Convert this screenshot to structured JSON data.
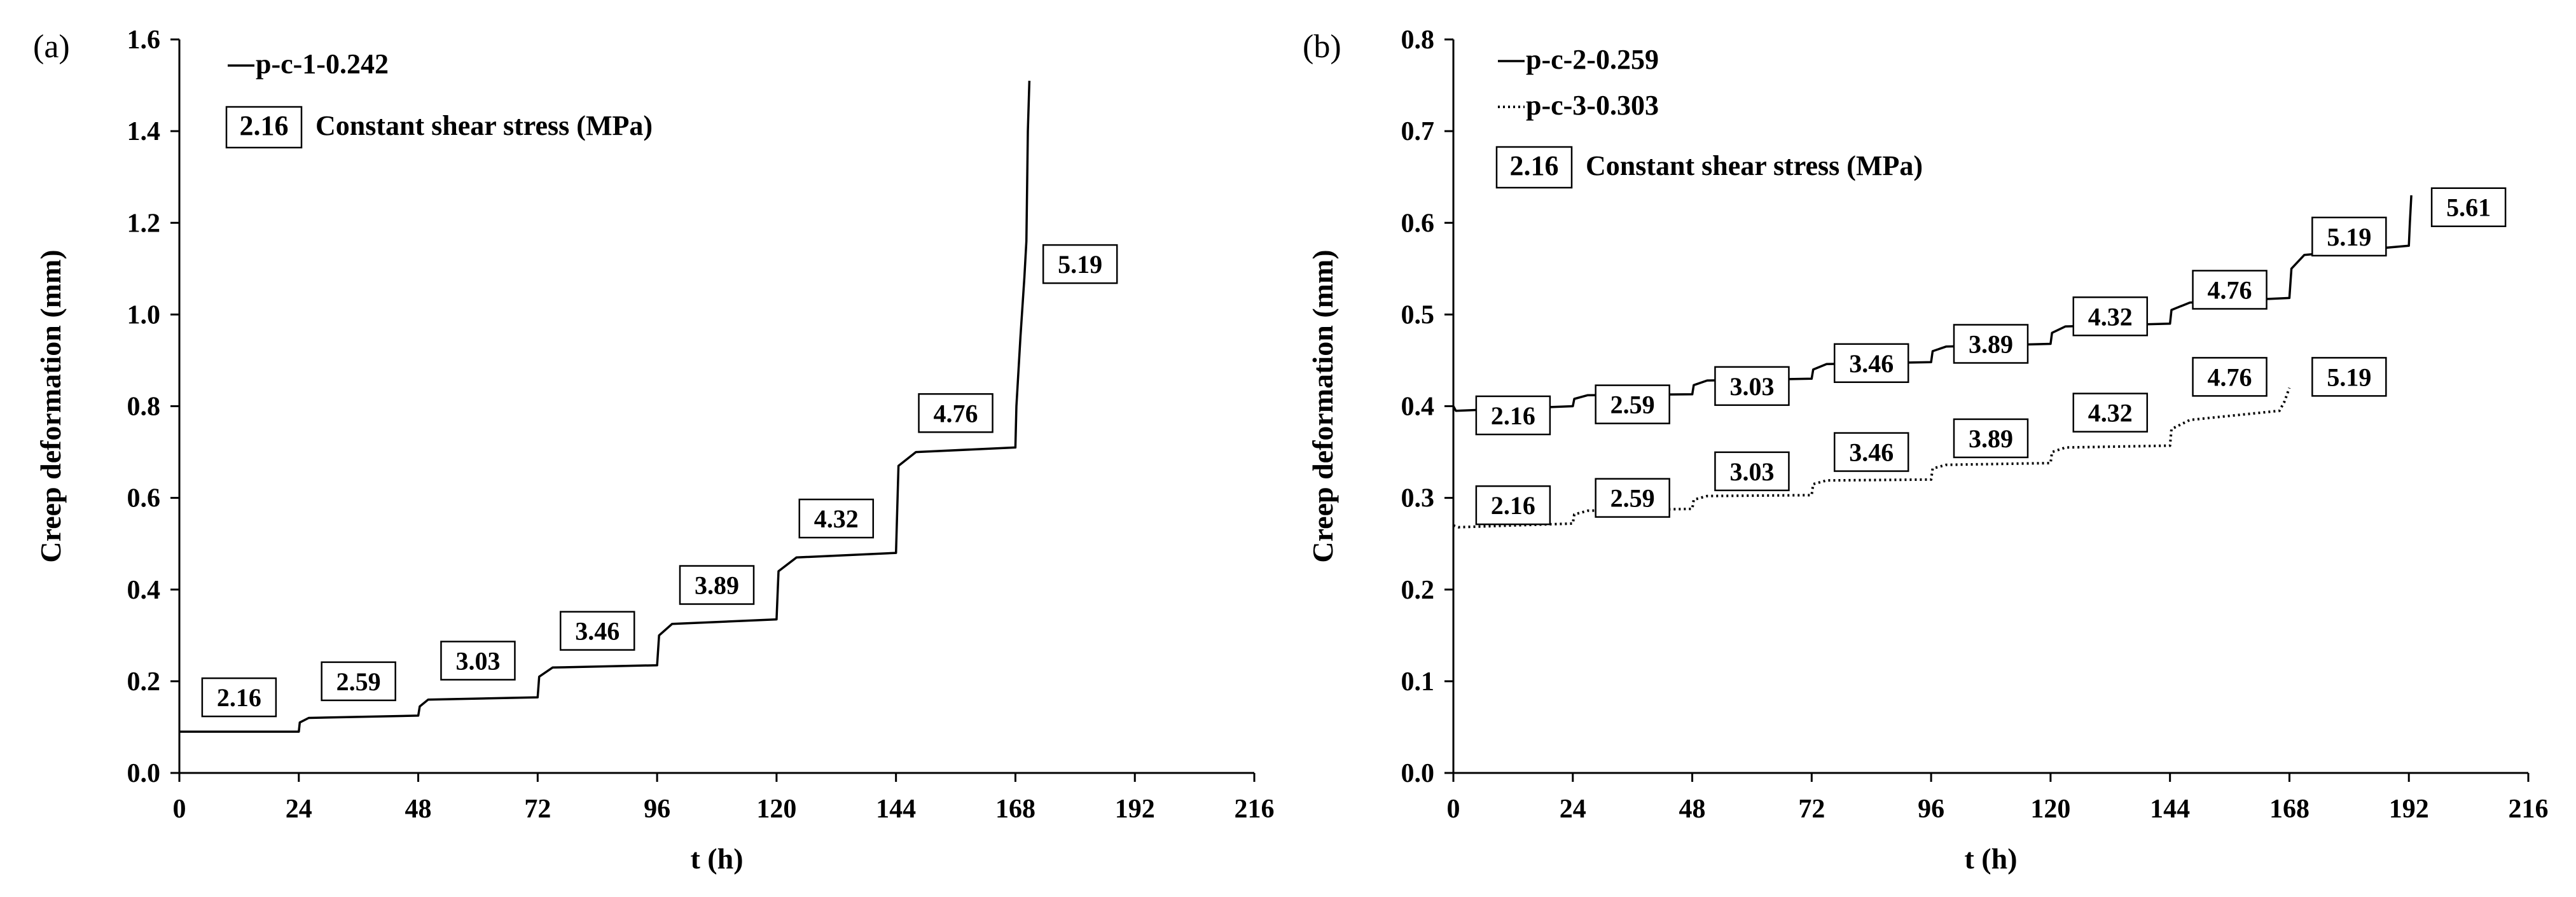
{
  "chart_data": [
    {
      "type": "line",
      "panel_label": "(a)",
      "xlabel": "t (h)",
      "ylabel": "Creep deformation (mm)",
      "xlim": [
        0,
        216
      ],
      "ylim": [
        0,
        1.6
      ],
      "x_ticks": [
        "0",
        "24",
        "48",
        "72",
        "96",
        "120",
        "144",
        "168",
        "192",
        "216"
      ],
      "y_ticks": [
        "0.0",
        "0.2",
        "0.4",
        "0.6",
        "0.8",
        "1.0",
        "1.2",
        "1.4",
        "1.6"
      ],
      "grid": false,
      "legend_position": "top-left",
      "box_legend": {
        "sample": "2.16",
        "text": "Constant shear stress (MPa)"
      },
      "series": [
        {
          "name": "p-c-1-0.242",
          "style": "solid",
          "x": [
            0,
            24,
            24.2,
            26,
            48,
            48.3,
            50,
            72,
            72.3,
            75,
            96,
            96.4,
            99,
            120,
            120.4,
            124,
            144,
            144.5,
            148,
            168,
            168.2,
            169,
            169.8,
            170.2,
            170.5,
            170.8
          ],
          "y": [
            0.09,
            0.09,
            0.11,
            0.12,
            0.125,
            0.145,
            0.16,
            0.165,
            0.21,
            0.23,
            0.235,
            0.3,
            0.325,
            0.335,
            0.44,
            0.47,
            0.48,
            0.67,
            0.7,
            0.71,
            0.8,
            0.95,
            1.08,
            1.16,
            1.4,
            1.51
          ]
        }
      ],
      "annotations": [
        {
          "text": "2.16",
          "x": 12,
          "y": 0.165
        },
        {
          "text": "2.59",
          "x": 36,
          "y": 0.2
        },
        {
          "text": "3.03",
          "x": 60,
          "y": 0.245
        },
        {
          "text": "3.46",
          "x": 84,
          "y": 0.31
        },
        {
          "text": "3.89",
          "x": 108,
          "y": 0.41
        },
        {
          "text": "4.32",
          "x": 132,
          "y": 0.555
        },
        {
          "text": "4.76",
          "x": 156,
          "y": 0.785
        },
        {
          "text": "5.19",
          "x": 181,
          "y": 1.11
        }
      ]
    },
    {
      "type": "line",
      "panel_label": "(b)",
      "xlabel": "t (h)",
      "ylabel": "Creep deformation (mm)",
      "xlim": [
        0,
        216
      ],
      "ylim": [
        0,
        0.8
      ],
      "x_ticks": [
        "0",
        "24",
        "48",
        "72",
        "96",
        "120",
        "144",
        "168",
        "192",
        "216"
      ],
      "y_ticks": [
        "0.0",
        "0.1",
        "0.2",
        "0.3",
        "0.4",
        "0.5",
        "0.6",
        "0.7",
        "0.8"
      ],
      "grid": false,
      "legend_position": "top-left",
      "box_legend": {
        "sample": "2.16",
        "text": "Constant shear stress (MPa)"
      },
      "series": [
        {
          "name": "p-c-2-0.259",
          "style": "solid",
          "x": [
            0,
            0.5,
            24,
            24.3,
            27,
            48,
            48.3,
            51,
            72,
            72.3,
            75,
            96,
            96.3,
            99,
            120,
            120.3,
            123,
            144,
            144.3,
            148,
            168,
            168.4,
            171,
            192,
            192.2,
            192.5
          ],
          "y": [
            0.4,
            0.395,
            0.4,
            0.408,
            0.412,
            0.413,
            0.423,
            0.428,
            0.43,
            0.44,
            0.446,
            0.448,
            0.46,
            0.465,
            0.468,
            0.48,
            0.487,
            0.49,
            0.505,
            0.513,
            0.518,
            0.55,
            0.565,
            0.575,
            0.6,
            0.63
          ]
        },
        {
          "name": "p-c-3-0.303",
          "style": "dotted",
          "x": [
            0,
            1,
            24,
            24.3,
            27,
            48,
            48.3,
            51,
            72,
            72.3,
            75,
            96,
            96.3,
            99,
            120,
            120.3,
            123,
            144,
            144.3,
            148,
            166,
            167,
            168
          ],
          "y": [
            0.27,
            0.268,
            0.272,
            0.282,
            0.286,
            0.288,
            0.298,
            0.302,
            0.303,
            0.315,
            0.319,
            0.32,
            0.332,
            0.336,
            0.338,
            0.35,
            0.355,
            0.357,
            0.375,
            0.385,
            0.395,
            0.405,
            0.42
          ]
        }
      ],
      "annotations": [
        {
          "text": "2.16",
          "x": 12,
          "y": 0.39,
          "series": 1
        },
        {
          "text": "2.59",
          "x": 36,
          "y": 0.402,
          "series": 1
        },
        {
          "text": "3.03",
          "x": 60,
          "y": 0.422,
          "series": 1
        },
        {
          "text": "3.46",
          "x": 84,
          "y": 0.447,
          "series": 1
        },
        {
          "text": "3.89",
          "x": 108,
          "y": 0.468,
          "series": 1
        },
        {
          "text": "4.32",
          "x": 132,
          "y": 0.498,
          "series": 1
        },
        {
          "text": "4.76",
          "x": 156,
          "y": 0.527,
          "series": 1
        },
        {
          "text": "5.19",
          "x": 180,
          "y": 0.585,
          "series": 1
        },
        {
          "text": "5.61",
          "x": 204,
          "y": 0.617,
          "series": 1
        },
        {
          "text": "2.16",
          "x": 12,
          "y": 0.292,
          "series": 2
        },
        {
          "text": "2.59",
          "x": 36,
          "y": 0.3,
          "series": 2
        },
        {
          "text": "3.03",
          "x": 60,
          "y": 0.329,
          "series": 2
        },
        {
          "text": "3.46",
          "x": 84,
          "y": 0.35,
          "series": 2
        },
        {
          "text": "3.89",
          "x": 108,
          "y": 0.365,
          "series": 2
        },
        {
          "text": "4.32",
          "x": 132,
          "y": 0.393,
          "series": 2
        },
        {
          "text": "4.76",
          "x": 156,
          "y": 0.432,
          "series": 2
        },
        {
          "text": "5.19",
          "x": 180,
          "y": 0.432,
          "series": 2
        }
      ]
    }
  ]
}
